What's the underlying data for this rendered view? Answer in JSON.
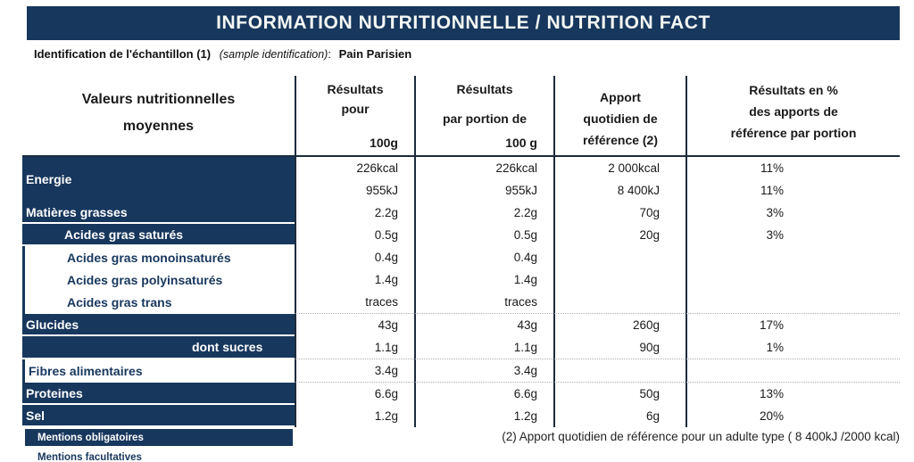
{
  "banner": {
    "title": "INFORMATION NUTRITIONNELLE / NUTRITION FACT"
  },
  "identification": {
    "label": "Identification de l'échantillon (1)",
    "sample_note": "(sample identification)",
    "colon": ":",
    "value": "Pain Parisien"
  },
  "table": {
    "header": {
      "label_lines": [
        "Valeurs nutritionnelles",
        "moyennes"
      ],
      "columns": [
        {
          "lines": [
            "Résultats",
            "pour"
          ],
          "unit": "100g"
        },
        {
          "lines": [
            "Résultats",
            "par portion de"
          ],
          "unit": "100 g"
        },
        {
          "lines": [
            "Apport",
            "quotidien de",
            "référence (2)"
          ],
          "unit": ""
        },
        {
          "lines": [
            "Résultats en %",
            "des apports de",
            "référence par portion"
          ],
          "unit": ""
        }
      ]
    },
    "rows": [
      {
        "label": "Energie",
        "variant": "dark",
        "indent": 0,
        "lines": [
          [
            "226kcal",
            "226kcal",
            "2 000kcal",
            "11%"
          ],
          [
            "955kJ",
            "955kJ",
            "8 400kJ",
            "11%"
          ]
        ]
      },
      {
        "label": "Matières grasses",
        "variant": "dark",
        "indent": 0,
        "gap_below": true,
        "lines": [
          [
            "2.2g",
            "2.2g",
            "70g",
            "3%"
          ]
        ]
      },
      {
        "label": "Acides gras saturés",
        "variant": "dark",
        "indent": 1,
        "gap_below": true,
        "lines": [
          [
            "0.5g",
            "0.5g",
            "20g",
            "3%"
          ]
        ]
      },
      {
        "label": "Acides gras monoinsaturés",
        "variant": "light",
        "indent": 1,
        "lines": [
          [
            "0.4g",
            "0.4g",
            "",
            ""
          ]
        ]
      },
      {
        "label": "Acides gras polyinsaturés",
        "variant": "light",
        "indent": 1,
        "lines": [
          [
            "1.4g",
            "1.4g",
            "",
            ""
          ]
        ]
      },
      {
        "label": "Acides gras trans",
        "variant": "light",
        "indent": 1,
        "dotted_below": true,
        "lines": [
          [
            "traces",
            "traces",
            "",
            ""
          ]
        ]
      },
      {
        "label": "Glucides",
        "variant": "dark",
        "indent": 0,
        "gap_below": true,
        "lines": [
          [
            "43g",
            "43g",
            "260g",
            "17%"
          ]
        ]
      },
      {
        "label": "dont sucres",
        "variant": "dark",
        "indent": 2,
        "gap_below": true,
        "dotted_below": true,
        "lines": [
          [
            "1.1g",
            "1.1g",
            "90g",
            "1%"
          ]
        ]
      },
      {
        "label": "Fibres alimentaires",
        "variant": "light",
        "indent": 0,
        "dotted_below": true,
        "lines": [
          [
            "3.4g",
            "3.4g",
            "",
            ""
          ]
        ]
      },
      {
        "label": "Proteines",
        "variant": "dark",
        "indent": 0,
        "gap_below": true,
        "lines": [
          [
            "6.6g",
            "6.6g",
            "50g",
            "13%"
          ]
        ]
      },
      {
        "label": "Sel",
        "variant": "dark",
        "indent": 0,
        "gap_below": true,
        "lines": [
          [
            "1.2g",
            "1.2g",
            "6g",
            "20%"
          ]
        ]
      }
    ]
  },
  "legend": {
    "mandatory": "Mentions obligatoires",
    "optional": "Mentions facultatives"
  },
  "footnote": "(2) Apport quotidien de référence pour un adulte type ( 8 400kJ /2000 kcal)",
  "colors": {
    "navy": "#17375D",
    "line": "#1C2B3C"
  }
}
